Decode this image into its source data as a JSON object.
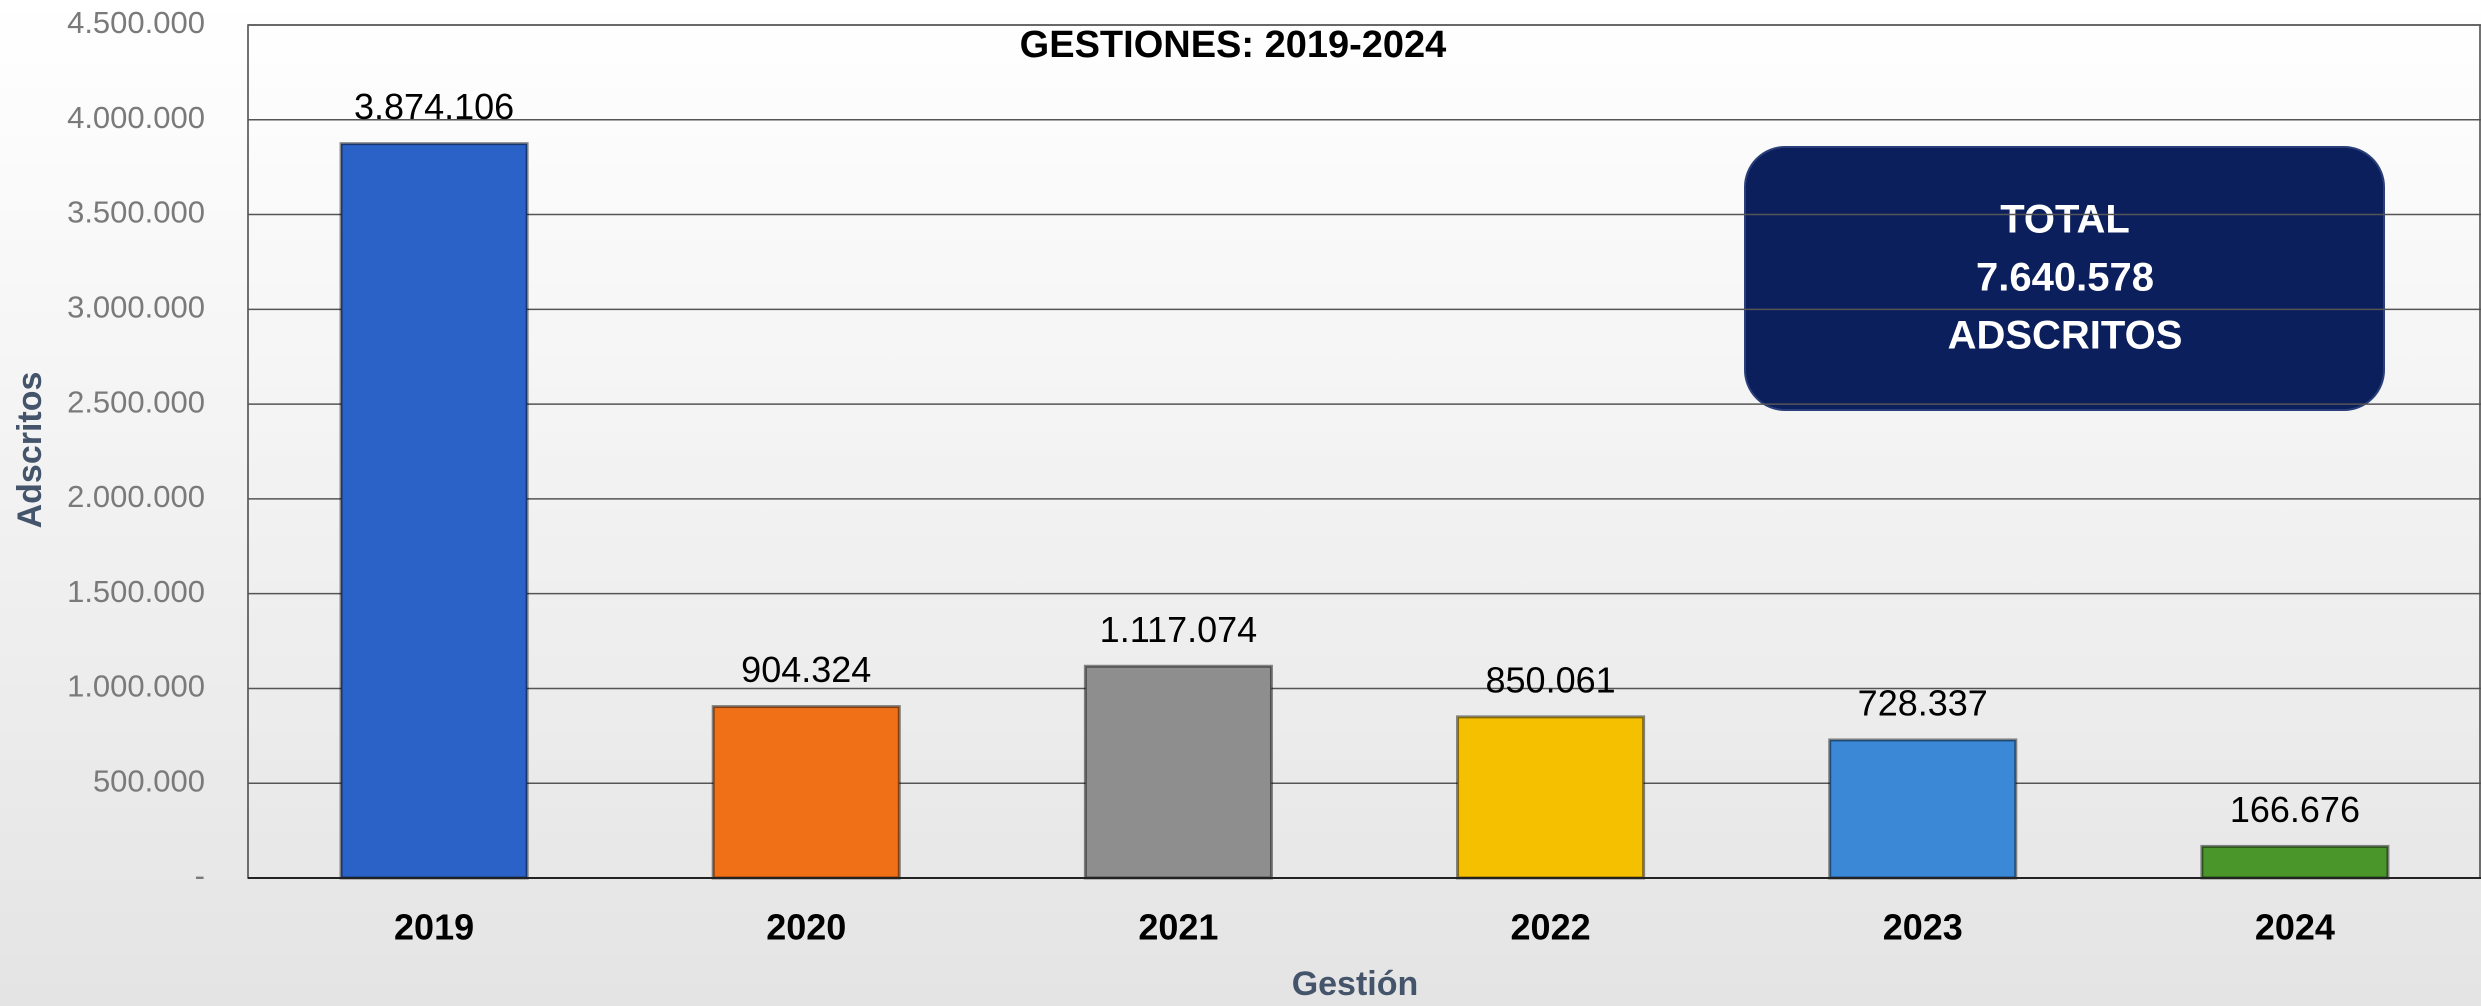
{
  "chart_data": {
    "type": "bar",
    "title": "GESTIONES: 2019-2024",
    "x_label": "Gestión",
    "y_label": "Adscritos",
    "categories": [
      "2019",
      "2020",
      "2021",
      "2022",
      "2023",
      "2024"
    ],
    "values": [
      3874106,
      904324,
      1117074,
      850061,
      728337,
      166676
    ],
    "value_labels": [
      "3.874.106",
      "904.324",
      "1.117.074",
      "850.061",
      "728.337",
      "166.676"
    ],
    "colors": [
      "#2a62c8",
      "#f07018",
      "#8e8e8e",
      "#f5c000",
      "#3a88d6",
      "#4a962a"
    ],
    "ylim": [
      0,
      4500000
    ],
    "yticks": [
      {
        "value": 0,
        "label": "-"
      },
      {
        "value": 500000,
        "label": "500.000"
      },
      {
        "value": 1000000,
        "label": "1.000.000"
      },
      {
        "value": 1500000,
        "label": "1.500.000"
      },
      {
        "value": 2000000,
        "label": "2.000.000"
      },
      {
        "value": 2500000,
        "label": "2.500.000"
      },
      {
        "value": 3000000,
        "label": "3.000.000"
      },
      {
        "value": 3500000,
        "label": "3.500.000"
      },
      {
        "value": 4000000,
        "label": "4.000.000"
      },
      {
        "value": 4500000,
        "label": "4.500.000"
      }
    ],
    "grid": true,
    "annotation": [
      "TOTAL",
      "7.640.578",
      "ADSCRITOS"
    ]
  }
}
